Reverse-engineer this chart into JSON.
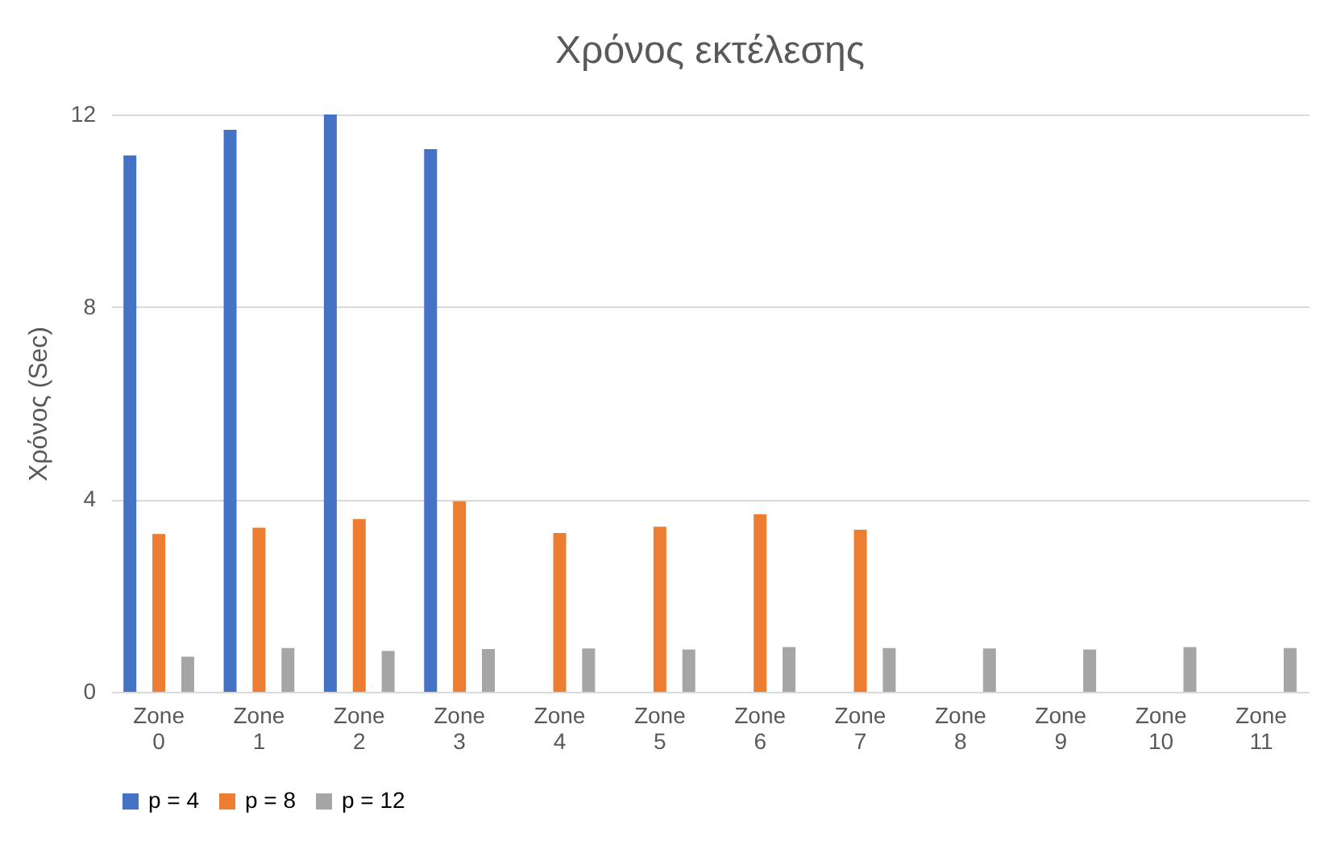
{
  "chart_data": {
    "type": "bar",
    "title": "Χρόνος εκτέλεσης",
    "ylabel": "Χρόνος (Sec)",
    "categories": [
      "Zone 0",
      "Zone 1",
      "Zone 2",
      "Zone 3",
      "Zone 4",
      "Zone 5",
      "Zone 6",
      "Zone 7",
      "Zone 8",
      "Zone 9",
      "Zone 10",
      "Zone 11"
    ],
    "series": [
      {
        "name": "p = 4",
        "color": "#4472c4",
        "values": [
          11.15,
          11.68,
          12.0,
          11.28,
          null,
          null,
          null,
          null,
          null,
          null,
          null,
          null
        ]
      },
      {
        "name": "p = 8",
        "color": "#ed7d31",
        "values": [
          3.28,
          3.41,
          3.59,
          3.96,
          3.3,
          3.43,
          3.69,
          3.37,
          null,
          null,
          null,
          null
        ]
      },
      {
        "name": "p = 12",
        "color": "#a5a5a5",
        "values": [
          0.73,
          0.91,
          0.85,
          0.89,
          0.9,
          0.88,
          0.93,
          0.91,
          0.9,
          0.88,
          0.93,
          0.91
        ]
      }
    ],
    "ylim": [
      0,
      12
    ],
    "yticks": [
      0,
      4,
      8,
      12
    ],
    "grid": "y",
    "legend": "bottom"
  }
}
